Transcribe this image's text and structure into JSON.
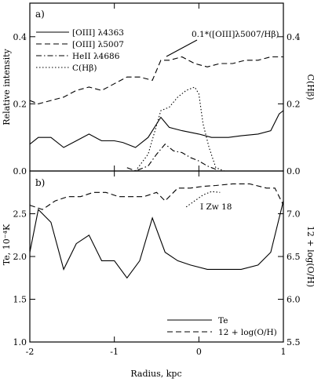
{
  "chart_data": [
    {
      "type": "line",
      "panel_label": "a)",
      "xlabel": "",
      "ylabel": "Relative intensity",
      "ylabel_right": "C(Hβ)",
      "xlim": [
        -2,
        1
      ],
      "ylim": [
        0,
        0.5
      ],
      "yticks": [
        0,
        0.2,
        0.4
      ],
      "ytick_labels": [
        "0.0",
        "0.2",
        "0.4"
      ],
      "ytick_labels_right": [
        "0.0",
        "0.2",
        "0.4"
      ],
      "xticks": [
        -2,
        -1,
        0,
        1
      ],
      "annotation": "0.1*([OIII]λ5007/Hβ)",
      "legend_position": "top-left",
      "series": [
        {
          "name": "[OIII] λ4363",
          "style": "solid",
          "x": [
            -2.0,
            -1.9,
            -1.75,
            -1.6,
            -1.45,
            -1.3,
            -1.15,
            -1.0,
            -0.9,
            -0.75,
            -0.6,
            -0.45,
            -0.35,
            -0.2,
            0.0,
            0.15,
            0.35,
            0.5,
            0.7,
            0.85,
            0.95,
            1.0
          ],
          "y": [
            0.08,
            0.1,
            0.1,
            0.07,
            0.09,
            0.11,
            0.09,
            0.09,
            0.085,
            0.07,
            0.1,
            0.16,
            0.13,
            0.12,
            0.11,
            0.1,
            0.1,
            0.105,
            0.11,
            0.12,
            0.17,
            0.18
          ]
        },
        {
          "name": "[OIII] λ5007",
          "style": "dashed",
          "x": [
            -2.0,
            -1.9,
            -1.75,
            -1.6,
            -1.45,
            -1.3,
            -1.15,
            -1.0,
            -0.85,
            -0.7,
            -0.55,
            -0.45,
            -0.35,
            -0.2,
            -0.05,
            0.1,
            0.25,
            0.4,
            0.55,
            0.7,
            0.85,
            1.0
          ],
          "y": [
            0.21,
            0.2,
            0.21,
            0.22,
            0.24,
            0.25,
            0.24,
            0.26,
            0.28,
            0.28,
            0.27,
            0.33,
            0.33,
            0.34,
            0.32,
            0.31,
            0.32,
            0.32,
            0.33,
            0.33,
            0.34,
            0.34
          ]
        },
        {
          "name": "HeII λ4686",
          "style": "dash-dot",
          "x": [
            -0.85,
            -0.75,
            -0.6,
            -0.5,
            -0.4,
            -0.3,
            -0.2,
            -0.1,
            0.0,
            0.1,
            0.2
          ],
          "y": [
            0.01,
            0.0,
            0.015,
            0.05,
            0.08,
            0.06,
            0.055,
            0.04,
            0.03,
            0.015,
            0.005
          ]
        },
        {
          "name": "C(Hβ)",
          "style": "dotted",
          "x": [
            -0.75,
            -0.6,
            -0.45,
            -0.35,
            -0.25,
            -0.15,
            -0.05,
            0.0,
            0.05,
            0.12,
            0.2,
            0.3
          ],
          "y": [
            0.0,
            0.05,
            0.18,
            0.19,
            0.22,
            0.24,
            0.25,
            0.23,
            0.14,
            0.07,
            0.01,
            0.0
          ]
        }
      ]
    },
    {
      "type": "line",
      "panel_label": "b)",
      "xlabel": "Radius, kpc",
      "ylabel": "Te, 10⁻⁴K",
      "ylabel_right": "12 + log(O/H)",
      "xlim": [
        -2,
        1
      ],
      "ylim": [
        1.0,
        3.0
      ],
      "ylim_right": [
        5.5,
        7.5
      ],
      "yticks": [
        1.0,
        1.5,
        2.0,
        2.5
      ],
      "ytick_labels": [
        "1.0",
        "1.5",
        "2.0",
        "2.5"
      ],
      "ytick_labels_right": [
        "5.5",
        "6.0",
        "6.5",
        "7.0"
      ],
      "xticks": [
        -2,
        -1,
        0,
        1
      ],
      "xtick_labels": [
        "-2",
        "-1",
        "0",
        "1"
      ],
      "annotation": "I Zw 18",
      "legend_position": "bottom-right",
      "series": [
        {
          "name": "Te",
          "style": "solid",
          "axis": "left",
          "x": [
            -2.0,
            -1.9,
            -1.75,
            -1.6,
            -1.45,
            -1.3,
            -1.15,
            -1.0,
            -0.85,
            -0.7,
            -0.55,
            -0.4,
            -0.25,
            -0.1,
            0.1,
            0.3,
            0.5,
            0.7,
            0.85,
            1.0
          ],
          "y": [
            2.05,
            2.55,
            2.4,
            1.85,
            2.15,
            2.25,
            1.95,
            1.95,
            1.75,
            1.95,
            2.45,
            2.05,
            1.95,
            1.9,
            1.85,
            1.85,
            1.85,
            1.9,
            2.05,
            2.65
          ]
        },
        {
          "name": "12 + log(O/H)",
          "style": "dashed",
          "axis": "right",
          "x": [
            -2.0,
            -1.85,
            -1.7,
            -1.55,
            -1.4,
            -1.25,
            -1.1,
            -0.95,
            -0.8,
            -0.65,
            -0.5,
            -0.4,
            -0.25,
            -0.1,
            0.05,
            0.2,
            0.4,
            0.6,
            0.8,
            0.9,
            1.0
          ],
          "y": [
            7.1,
            7.05,
            7.15,
            7.2,
            7.2,
            7.25,
            7.25,
            7.2,
            7.2,
            7.2,
            7.25,
            7.15,
            7.3,
            7.3,
            7.32,
            7.33,
            7.35,
            7.35,
            7.3,
            7.3,
            7.1
          ]
        }
      ],
      "reference": {
        "label": "I Zw 18",
        "style": "dotted",
        "axis": "right",
        "x": [
          -0.15,
          -0.05,
          0.05,
          0.15,
          0.25
        ],
        "y": [
          7.08,
          7.15,
          7.22,
          7.26,
          7.25
        ]
      }
    }
  ]
}
